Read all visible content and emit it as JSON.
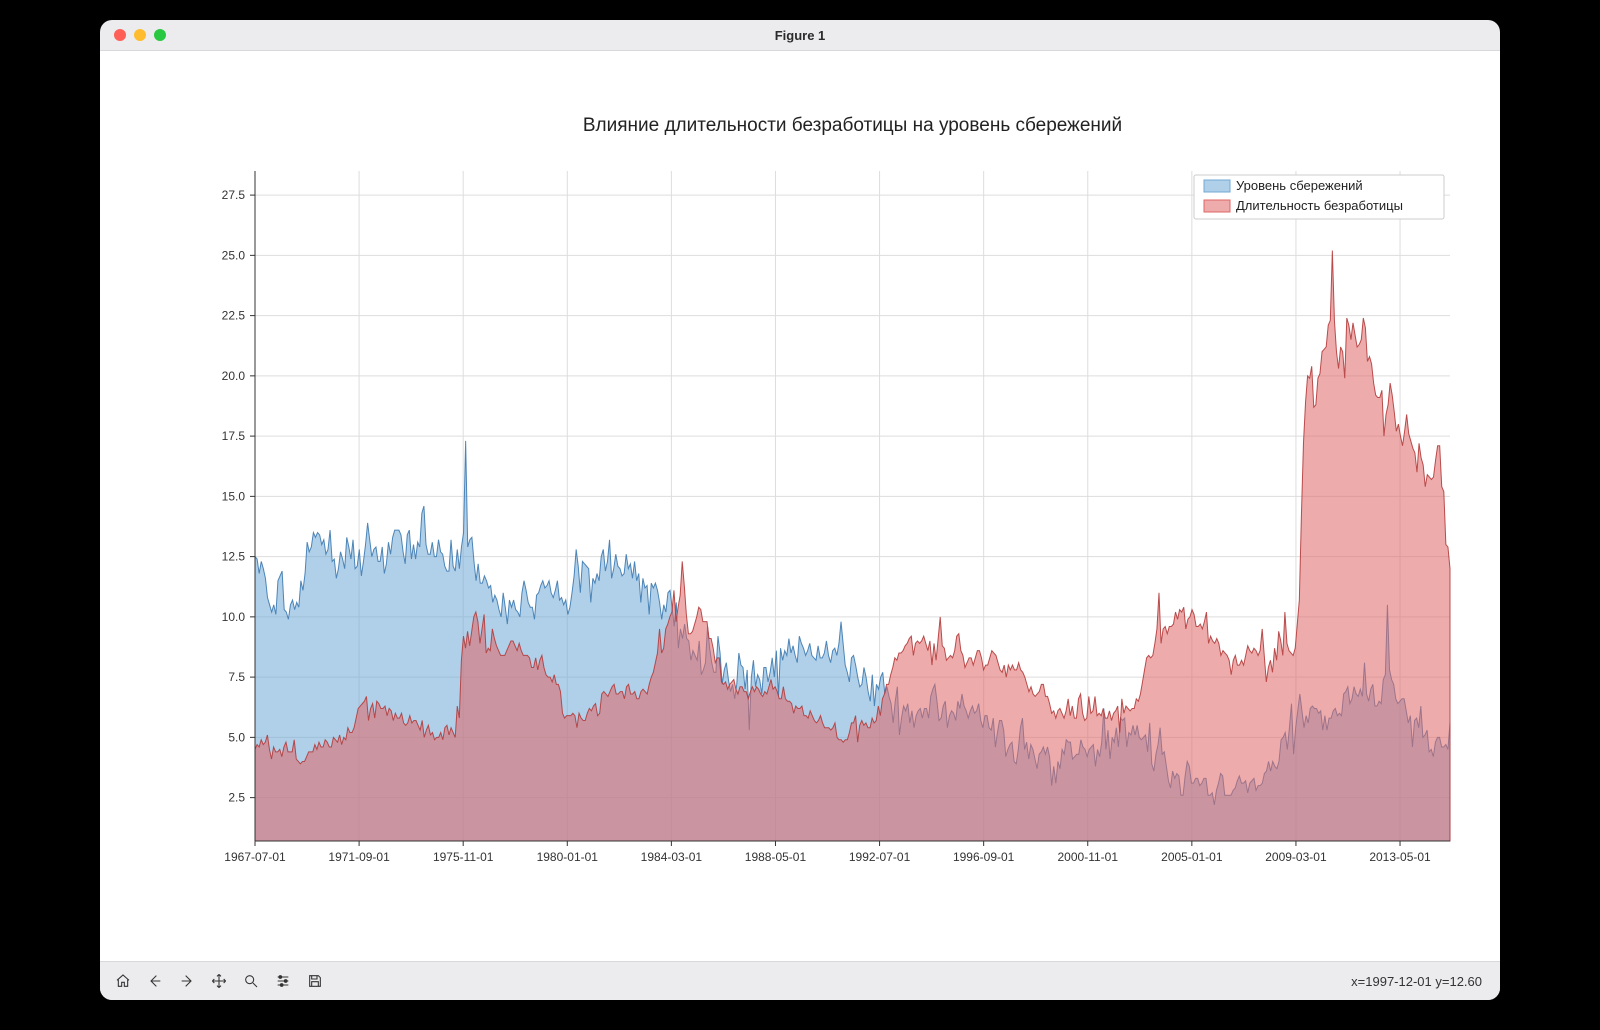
{
  "window": {
    "title": "Figure 1"
  },
  "traffic_colors": {
    "close": "#ff5f57",
    "min": "#febc2e",
    "max": "#28c840"
  },
  "toolbar": {
    "buttons": [
      "home",
      "back",
      "forward",
      "pan",
      "zoom",
      "configure",
      "save"
    ],
    "coord_readout": "x=1997-12-01 y=12.60"
  },
  "chart": {
    "type": "area",
    "title": "Влияние длительности безработицы на уровень сбережений",
    "title_fontsize": 19,
    "background_color": "#ffffff",
    "grid_color": "#dddddd",
    "axis_color": "#333333",
    "tick_fontsize": 12,
    "x": {
      "ticks": [
        "1967-07-01",
        "1971-09-01",
        "1975-11-01",
        "1980-01-01",
        "1984-03-01",
        "1988-05-01",
        "1992-07-01",
        "1996-09-01",
        "2000-11-01",
        "2005-01-01",
        "2009-03-01",
        "2013-05-01"
      ],
      "tick_positions": [
        0,
        50,
        100,
        150,
        200,
        250,
        300,
        350,
        400,
        450,
        500,
        550
      ],
      "xmin": 0,
      "xmax": 574
    },
    "y": {
      "min": 0.7,
      "max": 28.5,
      "ticks": [
        2.5,
        5.0,
        7.5,
        10.0,
        12.5,
        15.0,
        17.5,
        20.0,
        22.5,
        25.0,
        27.5
      ]
    },
    "legend": {
      "position": "upper-right",
      "items": [
        {
          "label": "Уровень сбережений",
          "color": "#6fa8d6",
          "alpha": 0.55
        },
        {
          "label": "Длительность безработицы",
          "color": "#e06666",
          "alpha": 0.55
        }
      ]
    },
    "series": [
      {
        "name": "savings",
        "label": "Уровень сбережений",
        "fill": "#6fa8d6",
        "fill_opacity": 0.55,
        "stroke": "#3d7ab0",
        "stroke_width": 1,
        "data": [
          12.5,
          12.4,
          11.8,
          12.3,
          12,
          11.6,
          10.8,
          10.5,
          10.2,
          10.5,
          10.1,
          11.5,
          11.7,
          11.9,
          10.3,
          10.2,
          9.9,
          10.5,
          10.7,
          10.3,
          10.6,
          10.4,
          11.5,
          11.1,
          11.8,
          13.1,
          12.7,
          12.9,
          13.5,
          13.3,
          13.5,
          13.4,
          13,
          13.2,
          12.6,
          12.8,
          13.6,
          12.3,
          12.4,
          11.6,
          12,
          12.7,
          12.4,
          12,
          13.3,
          12.9,
          12.4,
          13.2,
          12,
          12.1,
          12.8,
          11.7,
          12.3,
          13,
          13.9,
          13.2,
          12.5,
          12.8,
          12.9,
          12.3,
          12.3,
          12.9,
          11.8,
          12.2,
          13.1,
          12.6,
          13.3,
          13.6,
          13.6,
          13.6,
          13.4,
          12.7,
          12.2,
          13.4,
          13.6,
          12.4,
          13,
          12.4,
          13.1,
          12.9,
          14.3,
          14.6,
          13,
          12.6,
          12.6,
          13.1,
          12.5,
          12.5,
          13.2,
          12.7,
          12.6,
          12.1,
          11.9,
          11.9,
          13.2,
          12.1,
          11.9,
          12.8,
          12,
          12.9,
          13.5,
          17.3,
          12.9,
          13.2,
          13.3,
          12.3,
          11.5,
          12.2,
          11.4,
          11.4,
          11.7,
          11.5,
          11.2,
          11.3,
          10.6,
          10.9,
          10.7,
          10.3,
          10,
          11,
          10.4,
          9.7,
          10.7,
          10.4,
          10.7,
          10.3,
          10.2,
          10,
          11,
          11.5,
          11.1,
          10.6,
          10.4,
          10.4,
          9.9,
          10.9,
          11,
          11.3,
          11.5,
          11.2,
          11.3,
          11.5,
          11,
          10.8,
          11.1,
          11.5,
          10.7,
          10.8,
          10.5,
          10.7,
          10.1,
          10.4,
          11,
          11.7,
          12.8,
          12.1,
          11,
          12.3,
          12.2,
          12.1,
          12,
          10.6,
          11.6,
          11.4,
          11.8,
          11.5,
          12.5,
          12.8,
          11.9,
          12.3,
          13.2,
          11.6,
          12,
          12.6,
          12.1,
          12,
          11.7,
          11.8,
          12.6,
          12,
          12.2,
          11.6,
          12.3,
          11.5,
          11.8,
          10.6,
          11.6,
          11.2,
          11.3,
          10.1,
          11.4,
          11.2,
          11.4,
          11.1,
          10.6,
          9.9,
          10.5,
          10.2,
          11,
          11.1,
          10.4,
          9.6,
          10.6,
          8.7,
          9.5,
          9.1,
          9.7,
          9.1,
          9,
          8.2,
          8.6,
          8.4,
          8.2,
          9,
          7.6,
          7.8,
          8.1,
          9.6,
          8.7,
          8.1,
          7.7,
          7.7,
          9.2,
          8.5,
          7.2,
          7.8,
          8.1,
          7.4,
          6.9,
          7.2,
          6.6,
          7.2,
          8.5,
          8,
          7.9,
          7,
          7.8,
          5.3,
          7.5,
          8.2,
          7.1,
          7.6,
          7.4,
          6.8,
          7.9,
          7.9,
          7.3,
          7.7,
          8.3,
          7.5,
          8.6,
          6.7,
          8.7,
          8.2,
          8.6,
          8.4,
          9.1,
          8.5,
          8.8,
          8.4,
          8.1,
          9.2,
          8.9,
          8.7,
          8.4,
          8.6,
          8.9,
          8.4,
          8.3,
          8.2,
          8.8,
          8.3,
          8.3,
          8.5,
          9,
          8.4,
          8.1,
          8.6,
          8.7,
          8.4,
          8.9,
          9.8,
          8.9,
          8,
          7.7,
          7.3,
          8.3,
          8.4,
          8,
          7.5,
          7.1,
          7.2,
          7.9,
          7.5,
          6.9,
          6.5,
          7.6,
          6.3,
          7.2,
          7,
          7.5,
          7.7,
          6.8,
          7.1,
          6.7,
          6.4,
          5.6,
          6.5,
          7.1,
          5.1,
          5.8,
          6.3,
          6.1,
          6.4,
          5.6,
          6.1,
          5.4,
          5.9,
          6.1,
          6.2,
          5.8,
          6.2,
          6.2,
          5.8,
          6.7,
          7,
          7.2,
          6.5,
          5.7,
          5.8,
          6.3,
          6.5,
          5.4,
          5.9,
          6.1,
          6,
          5.7,
          6.5,
          6.2,
          6.8,
          6.3,
          6.1,
          5.8,
          6.1,
          6.3,
          6,
          6.1,
          6.4,
          5.7,
          5.4,
          5.9,
          5.9,
          5.4,
          5.3,
          5.8,
          4.6,
          5.2,
          5.7,
          5.7,
          5.3,
          4.2,
          4.5,
          4.7,
          4.8,
          4,
          3.9,
          4.5,
          5.4,
          5.8,
          4.5,
          4.8,
          4.1,
          4.7,
          4.5,
          4.1,
          3.7,
          4.3,
          4.4,
          4.6,
          4.3,
          4.6,
          4.2,
          3,
          3.8,
          3.1,
          4,
          3.7,
          4.5,
          4.3,
          4.9,
          4.8,
          4.8,
          4.1,
          4.2,
          4.3,
          4.3,
          4.9,
          4.6,
          4.5,
          4.2,
          4.5,
          4.6,
          4.7,
          3.8,
          4.5,
          4.2,
          4.8,
          6.2,
          4.5,
          5.3,
          4.1,
          5,
          4.8,
          5.4,
          4.6,
          5.8,
          5.7,
          5.8,
          4.6,
          5.2,
          5.1,
          5.5,
          5.1,
          5.5,
          5,
          4.9,
          5,
          5.1,
          4.4,
          5.6,
          3.9,
          3.6,
          4.3,
          4.7,
          5.4,
          4.3,
          4.4,
          3.8,
          3.2,
          2.9,
          3.6,
          3.3,
          3.5,
          3.4,
          2.6,
          2.6,
          3.4,
          4,
          3.8,
          3.1,
          3.1,
          3.3,
          3.3,
          3,
          3.1,
          3.3,
          3.3,
          2.6,
          2.6,
          2.7,
          2.2,
          2.8,
          3.1,
          3.5,
          3.4,
          2.6,
          2.6,
          2.6,
          2.6,
          2.8,
          2.9,
          3.2,
          3.4,
          3.1,
          3.1,
          3.2,
          2.7,
          3.1,
          3.2,
          3.3,
          2.8,
          3,
          3,
          3.1,
          3.5,
          3.6,
          4,
          3.6,
          4,
          3.8,
          3.7,
          4,
          4.9,
          5,
          5.2,
          4.5,
          5.4,
          6.4,
          4.3,
          5.4,
          6.1,
          6.8,
          6.1,
          5.4,
          5.9,
          5.6,
          6.2,
          6.3,
          6.2,
          6.2,
          6,
          6.1,
          5.3,
          5.9,
          5.3,
          5.8,
          5.8,
          6.1,
          6.2,
          5.9,
          6,
          5.9,
          6.8,
          6.9,
          7.1,
          6.4,
          6.6,
          7.1,
          6.8,
          6.7,
          7,
          6.7,
          8.1,
          6.8,
          6.5,
          7,
          7.2,
          6.3,
          6.3,
          6.5,
          6.4,
          7.4,
          7.6,
          10.5,
          7.8,
          7.4,
          7.2,
          6.6,
          6.4,
          6.5,
          6.6,
          6.6,
          6.1,
          5.6,
          5.9,
          4.6,
          5.7,
          5.8,
          5.4,
          6.3,
          5,
          5.1,
          5.3,
          4.4,
          4.5,
          4.2,
          4.8,
          5,
          5,
          4.6,
          4.6,
          4.7,
          4.5,
          5.6
        ]
      },
      {
        "name": "unemployment",
        "label": "Длительность безработицы",
        "fill": "#e06666",
        "fill_opacity": 0.55,
        "stroke": "#b23c3c",
        "stroke_width": 1,
        "data": [
          4.5,
          4.7,
          4.6,
          4.9,
          4.7,
          4.8,
          5.1,
          4.5,
          4.1,
          4.6,
          4.4,
          4.4,
          4.5,
          4.2,
          4.6,
          4.8,
          4.4,
          4.4,
          4.4,
          4.9,
          4.1,
          4,
          3.9,
          4,
          4,
          4.2,
          4.4,
          4.4,
          4.4,
          4.7,
          4.5,
          4.8,
          4.6,
          4.6,
          4.9,
          4.8,
          4.6,
          4.6,
          5,
          4.9,
          4.8,
          5.1,
          4.7,
          5,
          4.9,
          5.4,
          5.2,
          5.2,
          5.4,
          5.8,
          6.2,
          6.3,
          6.4,
          6.5,
          6.7,
          5.7,
          6.2,
          6.4,
          5.8,
          6.5,
          6.4,
          6.2,
          6.2,
          6.3,
          5.9,
          6.2,
          6.1,
          5.7,
          6,
          5.8,
          5.8,
          6,
          5.6,
          5.5,
          5.6,
          5.9,
          5.6,
          5.7,
          5.7,
          5.5,
          5.3,
          5.7,
          5,
          5.3,
          5.5,
          5.1,
          5.2,
          4.9,
          5,
          5,
          5.2,
          4.9,
          5.4,
          5.5,
          5.1,
          5.4,
          5.2,
          5,
          6.3,
          5.8,
          8.2,
          9.2,
          8.7,
          9.4,
          8.8,
          9.4,
          10,
          10.2,
          9.8,
          8.9,
          9.5,
          10.1,
          8.5,
          8.7,
          8.6,
          9.5,
          9.1,
          8.8,
          8.6,
          8.4,
          8.4,
          8.4,
          8.6,
          8.8,
          9,
          9,
          8.8,
          8.6,
          8.9,
          8.6,
          8.4,
          8.4,
          8.4,
          8.3,
          7.9,
          7.9,
          8.3,
          7.8,
          8.2,
          8.4,
          7.9,
          7.6,
          7.5,
          7.5,
          7.3,
          7.6,
          7.2,
          7.2,
          6.9,
          6,
          5.8,
          5.9,
          5.9,
          5.9,
          6,
          5.9,
          5.4,
          6,
          5.8,
          5.7,
          5.7,
          6,
          6.2,
          6.1,
          6.3,
          6.4,
          5.9,
          6,
          6.8,
          6.9,
          6.8,
          6.7,
          6.9,
          7.1,
          7.2,
          6.8,
          6.8,
          6.9,
          6.9,
          6.6,
          7.1,
          7.2,
          6.8,
          6.8,
          6.9,
          6.6,
          6.6,
          6.9,
          7,
          6.9,
          6.8,
          7.2,
          7.5,
          7.7,
          8.1,
          8.5,
          9.5,
          8.5,
          8.7,
          9.5,
          9.7,
          10,
          10.2,
          11.1,
          9.8,
          10.4,
          10.9,
          12.3,
          11.3,
          10.1,
          9.3,
          9.3,
          9.4,
          9.7,
          10,
          10.4,
          10.3,
          9.8,
          9.8,
          9.8,
          9.1,
          9.1,
          8.7,
          8.1,
          8.3,
          8.3,
          7.3,
          7.2,
          7.3,
          7,
          7.2,
          7.3,
          7.4,
          7,
          6.8,
          7.1,
          7.1,
          6.9,
          6.9,
          6.6,
          6.9,
          7.1,
          6.9,
          7.1,
          7,
          6.8,
          6.7,
          6.9,
          6.8,
          7.1,
          7.4,
          7,
          7.1,
          6.9,
          6.6,
          6.6,
          7.1,
          6.6,
          6.5,
          6.5,
          6.4,
          6,
          6.3,
          6.2,
          6.2,
          6.3,
          5.9,
          5.9,
          5.8,
          6.1,
          5.9,
          5.7,
          5.6,
          5.7,
          5.9,
          5.6,
          5.4,
          5.4,
          5.4,
          5.3,
          5.4,
          5.6,
          5,
          4.9,
          4.9,
          4.8,
          4.9,
          4.9,
          5.2,
          5.6,
          5.6,
          5.9,
          4.8,
          5.5,
          5.7,
          5.5,
          5.6,
          5.4,
          5.4,
          5.8,
          5.6,
          5.7,
          6.3,
          5.9,
          6.6,
          6.8,
          7.2,
          7.2,
          7.6,
          7.9,
          8.3,
          8.2,
          8.5,
          8.5,
          8.6,
          8.8,
          8.9,
          9.1,
          9.2,
          8.4,
          8.9,
          9,
          8.9,
          9,
          9.2,
          8.9,
          8.6,
          9,
          8,
          8.9,
          8.2,
          9.1,
          10,
          8.8,
          8.7,
          8.2,
          8.3,
          8.4,
          8.3,
          8.6,
          9.2,
          9.3,
          8.6,
          8.4,
          7.9,
          8.1,
          8.3,
          8.3,
          8,
          8.3,
          8.6,
          8.6,
          8.3,
          7.8,
          8,
          8,
          8.3,
          8.6,
          8.5,
          8.4,
          8.1,
          7.8,
          7.7,
          8,
          7.5,
          8,
          7.8,
          8,
          7.8,
          7.8,
          8.1,
          7.8,
          7.7,
          7.5,
          7.2,
          6.9,
          7.1,
          6.8,
          6.7,
          6.8,
          6.9,
          7.2,
          7.2,
          6.7,
          6.7,
          6.4,
          6,
          6.1,
          5.8,
          6.1,
          6.2,
          6,
          5.8,
          6.1,
          6.6,
          5.9,
          6.3,
          5.8,
          5.8,
          6.6,
          6.8,
          6,
          5.7,
          5.8,
          6.7,
          6,
          6.1,
          6.7,
          5.9,
          6,
          5.9,
          6.2,
          5.8,
          5.8,
          6.1,
          5.7,
          6,
          6.1,
          6.3,
          5.2,
          6.6,
          6,
          6.3,
          6.2,
          6.1,
          6.2,
          6.2,
          6.6,
          6.5,
          6.8,
          7.3,
          7.8,
          8.3,
          8.4,
          8.3,
          8.4,
          8.9,
          9.5,
          11,
          8.9,
          9.5,
          9.6,
          9.3,
          9.6,
          9.6,
          9.7,
          10.2,
          9.9,
          10.3,
          10.2,
          10.4,
          9.5,
          9.9,
          10,
          10.3,
          10.1,
          9.6,
          9.6,
          9.7,
          9.5,
          9.8,
          10.2,
          8.9,
          9.2,
          9,
          8.9,
          9.1,
          8.9,
          8.4,
          8.6,
          8.5,
          8.4,
          8.2,
          7.6,
          8.2,
          8.4,
          8,
          8,
          8.2,
          8,
          8.4,
          8.8,
          8.6,
          8.5,
          8.7,
          8.6,
          8.4,
          8.6,
          9.5,
          8.4,
          7.3,
          7.9,
          8.2,
          7.7,
          8.7,
          8.2,
          9.4,
          9,
          8.4,
          10.2,
          8.9,
          8.6,
          8.5,
          8.4,
          8.7,
          9.7,
          10.7,
          14.2,
          17.2,
          18.9,
          20,
          19.9,
          20.4,
          18.7,
          18.8,
          19.9,
          20.1,
          21,
          21.1,
          21.2,
          22.1,
          22.3,
          25.2,
          22.3,
          21,
          20.3,
          21.2,
          21,
          19.9,
          22.4,
          22.1,
          21.5,
          22.2,
          21.7,
          21.2,
          21.3,
          21.5,
          22.4,
          22,
          20.6,
          20.8,
          20.5,
          19.7,
          19.2,
          19.1,
          19.1,
          19.4,
          17.5,
          18.4,
          18.8,
          19.7,
          19.2,
          18.5,
          17.7,
          18,
          17.5,
          17.1,
          17.7,
          18.4,
          17.6,
          17.3,
          17,
          16.8,
          16,
          17.2,
          16.6,
          16.3,
          15.4,
          15.9,
          15.8,
          15.7,
          15.8,
          16.5,
          17.1,
          17.1,
          15.4,
          15.2,
          13,
          12.9,
          12
        ]
      }
    ]
  }
}
